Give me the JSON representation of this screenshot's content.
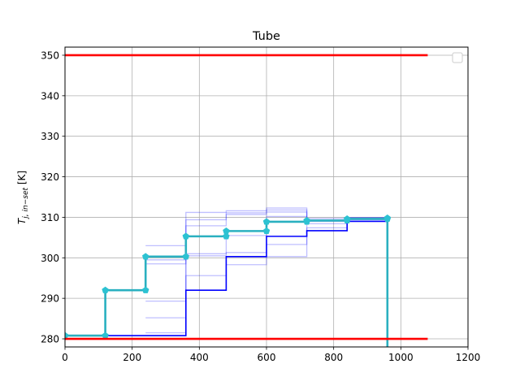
{
  "chart_data": {
    "type": "line",
    "title": "Tube",
    "xlabel": "",
    "ylabel": "T",
    "ylabel_sub": "j, in−set",
    "ylabel_unit": " [K]",
    "xlim": [
      0,
      1200
    ],
    "ylim": [
      278,
      352
    ],
    "xticks": [
      0,
      200,
      400,
      600,
      800,
      1000,
      1200
    ],
    "yticks": [
      280,
      290,
      300,
      310,
      320,
      330,
      340,
      350
    ],
    "grid": true,
    "legend": "top-right (empty)",
    "colors": {
      "limits": "#ff0000",
      "current": "#0000ff",
      "history": "#0000ff",
      "target": "#2ab0c0",
      "markers": "#2cc2d2",
      "grid": "#b0b0b0"
    },
    "limits": [
      {
        "y": 350,
        "x": [
          0,
          1080
        ]
      },
      {
        "y": 280,
        "x": [
          0,
          1080
        ]
      }
    ],
    "history_series": [
      {
        "x": [
          240,
          360,
          480,
          600,
          720,
          840,
          960,
          960
        ],
        "y": [
          281.5,
          295.6,
          298.3,
          300.3,
          307.4,
          309.4,
          309.6,
          278
        ]
      },
      {
        "x": [
          240,
          360,
          480,
          600,
          720,
          840,
          960,
          960
        ],
        "y": [
          285.2,
          300.5,
          301.3,
          303.3,
          308.4,
          309.7,
          309.7,
          278
        ]
      },
      {
        "x": [
          240,
          360,
          480,
          600,
          720,
          840,
          960,
          960
        ],
        "y": [
          289.3,
          301.0,
          305.5,
          310.2,
          309.0,
          309.5,
          309.8,
          278
        ]
      },
      {
        "x": [
          240,
          360,
          480,
          600,
          720,
          840,
          960,
          960
        ],
        "y": [
          298.5,
          307.9,
          310.7,
          311.3,
          309.7,
          309.8,
          309.8,
          278
        ]
      },
      {
        "x": [
          240,
          360,
          480,
          600,
          720,
          840,
          960,
          960
        ],
        "y": [
          299.5,
          309.4,
          311.1,
          311.8,
          309.2,
          309.9,
          309.8,
          278
        ]
      },
      {
        "x": [
          240,
          360,
          480,
          600,
          720,
          840,
          960,
          960
        ],
        "y": [
          303.0,
          311.2,
          311.6,
          312.3,
          309.1,
          309.9,
          309.8,
          278
        ]
      }
    ],
    "current_series": {
      "x": [
        0,
        120,
        240,
        360,
        480,
        600,
        720,
        840,
        960,
        960
      ],
      "y": [
        280.8,
        280.8,
        280.8,
        292.0,
        300.3,
        305.3,
        306.7,
        309.0,
        309.7,
        278
      ]
    },
    "target_series": {
      "x": [
        0,
        120,
        240,
        360,
        480,
        600,
        720,
        840,
        960,
        960
      ],
      "y": [
        280.8,
        292.0,
        300.3,
        305.3,
        306.6,
        308.9,
        309.2,
        309.6,
        309.8,
        278
      ],
      "markers": [
        [
          0,
          280.8
        ],
        [
          120,
          280.8
        ],
        [
          120,
          292.0
        ],
        [
          240,
          292.0
        ],
        [
          240,
          300.3
        ],
        [
          360,
          300.3
        ],
        [
          360,
          305.3
        ],
        [
          480,
          305.3
        ],
        [
          480,
          306.6
        ],
        [
          600,
          306.6
        ],
        [
          600,
          308.9
        ],
        [
          720,
          308.9
        ],
        [
          720,
          309.2
        ],
        [
          840,
          309.2
        ],
        [
          840,
          309.6
        ],
        [
          960,
          309.6
        ],
        [
          960,
          309.8
        ]
      ]
    }
  }
}
